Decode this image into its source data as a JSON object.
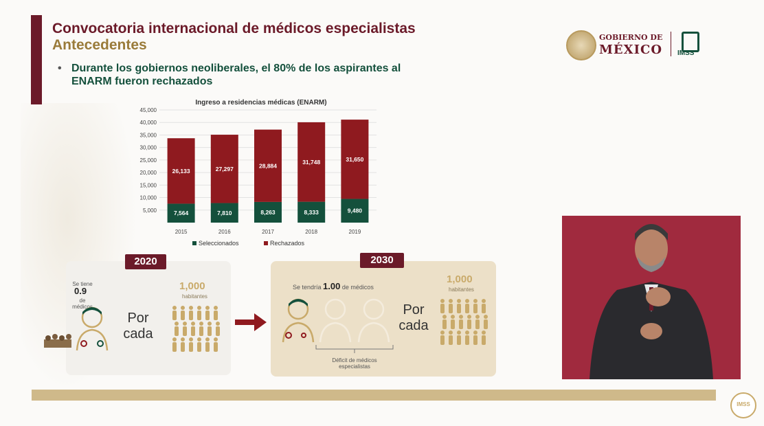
{
  "slide": {
    "title": "Convocatoria internacional de médicos especialistas",
    "subtitle": "Antecedentes",
    "bullet": "Durante los gobiernos neoliberales, el 80% de los aspirantes al ENARM fueron rechazados"
  },
  "logo": {
    "gob_line1": "GOBIERNO DE",
    "gob_line2": "MÉXICO",
    "imss": "IMSS"
  },
  "chart_data": {
    "type": "bar",
    "stacked": true,
    "title": "Ingreso a residencias médicas (ENARM)",
    "categories": [
      "2015",
      "2016",
      "2017",
      "2018",
      "2019"
    ],
    "series": [
      {
        "name": "Seleccionados",
        "color": "#14503c",
        "values": [
          7564,
          7810,
          8263,
          8333,
          9480
        ],
        "labels": [
          "7,564",
          "7,810",
          "8,263",
          "8,333",
          "9,480"
        ]
      },
      {
        "name": "Rechazados",
        "color": "#8f1a1f",
        "values": [
          26133,
          27297,
          28884,
          31748,
          31650
        ],
        "labels": [
          "26,133",
          "27,297",
          "28,884",
          "31,748",
          "31,650"
        ]
      }
    ],
    "ylim": [
      0,
      45000
    ],
    "yticks": [
      5000,
      10000,
      15000,
      20000,
      25000,
      30000,
      35000,
      40000,
      45000
    ],
    "ytick_labels": [
      "5,000",
      "10,000",
      "15,000",
      "20,000",
      "25,000",
      "30,000",
      "35,000",
      "40,000",
      "45,000"
    ],
    "grid": true,
    "legend": "bottom"
  },
  "panel_2020": {
    "year": "2020",
    "se_tiene": "Se tiene",
    "value": "0.9",
    "de_medicos": "de médicos",
    "por_cada_1": "Por",
    "por_cada_2": "cada",
    "habitantes_value": "1,000",
    "habitantes_label": "habitantes"
  },
  "panel_2030": {
    "year": "2030",
    "se_tendria": "Se tendría",
    "value": "1.00",
    "de_medicos": "de médicos",
    "por_cada_1": "Por",
    "por_cada_2": "cada",
    "habitantes_value": "1,000",
    "habitantes_label": "habitantes",
    "deficit": "Déficit de médicos especialistas"
  },
  "colors": {
    "maroon": "#6b1a29",
    "green": "#14503c",
    "gold": "#c9aa6a"
  }
}
